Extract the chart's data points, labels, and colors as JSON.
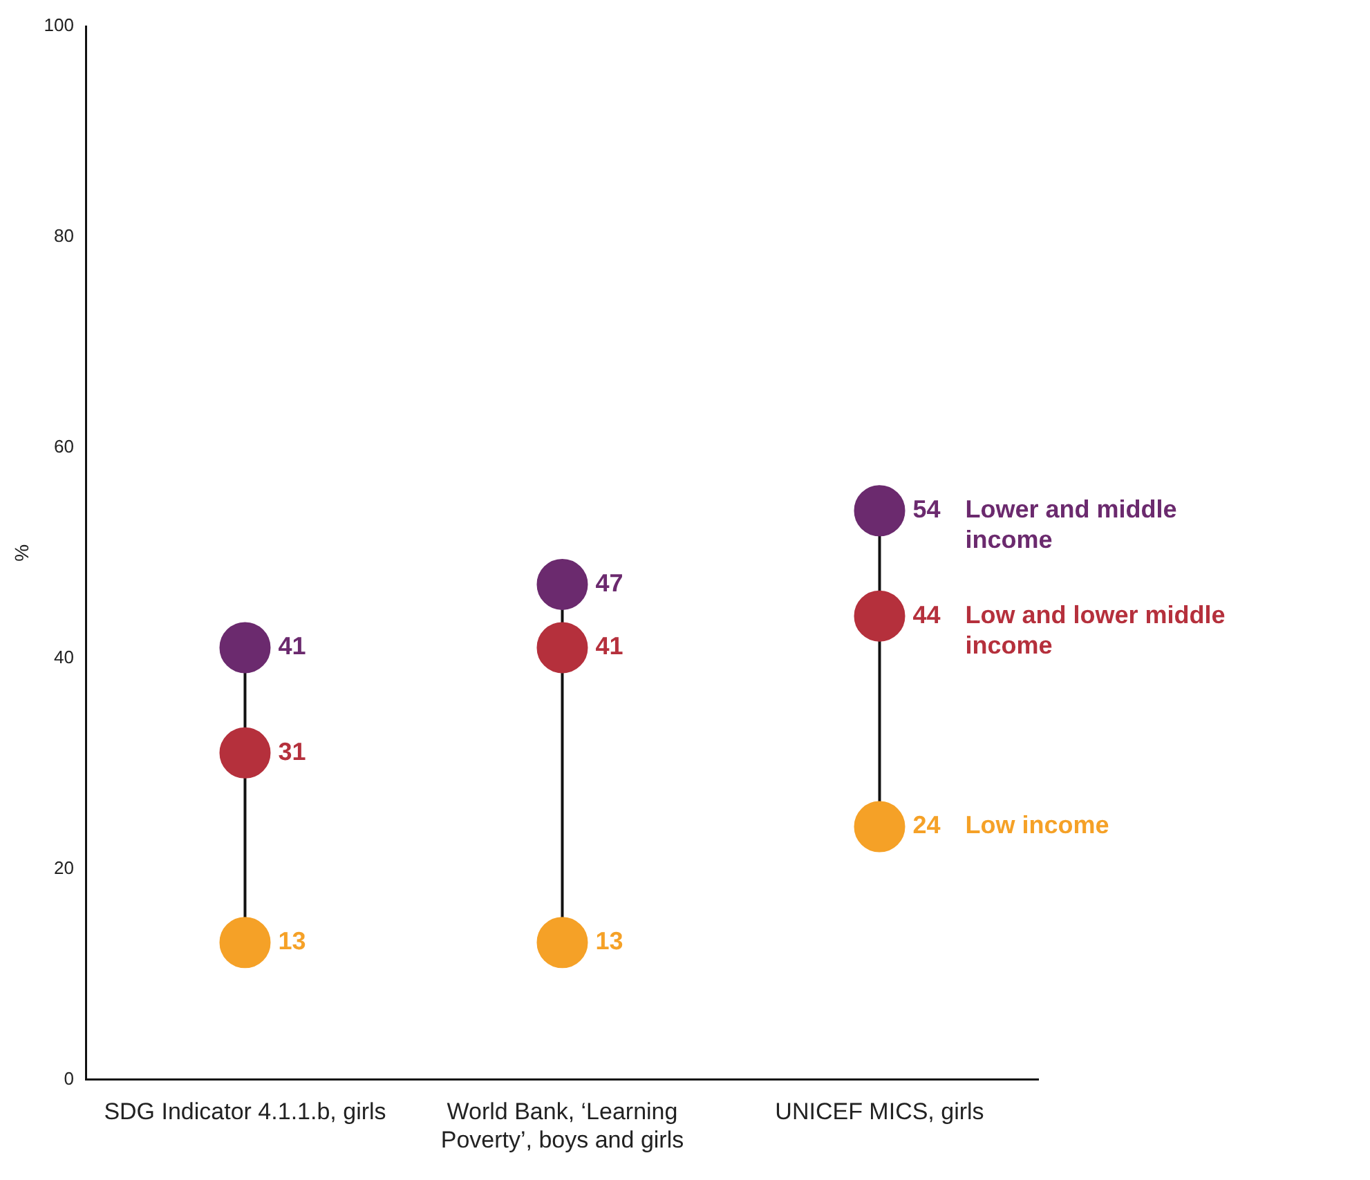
{
  "chart_data": {
    "type": "scatter",
    "ylabel": "%",
    "categories": [
      "SDG Indicator 4.1.1.b, girls",
      "World Bank, ‘Learning Poverty’, boys and girls",
      "UNICEF MICS, girls"
    ],
    "series": [
      {
        "name": "Lower and middle income",
        "color": "#6b2a6e",
        "values": [
          41,
          47,
          54
        ]
      },
      {
        "name": "Low and lower middle income",
        "color": "#b5303c",
        "values": [
          31,
          41,
          44
        ]
      },
      {
        "name": "Low income",
        "color": "#f5a127",
        "values": [
          13,
          13,
          24
        ]
      }
    ],
    "ylim": [
      0,
      100
    ],
    "yticks": [
      0,
      20,
      40,
      60,
      80,
      100
    ],
    "grid": false,
    "legend": false,
    "marker": "circle",
    "data_labels": true
  }
}
